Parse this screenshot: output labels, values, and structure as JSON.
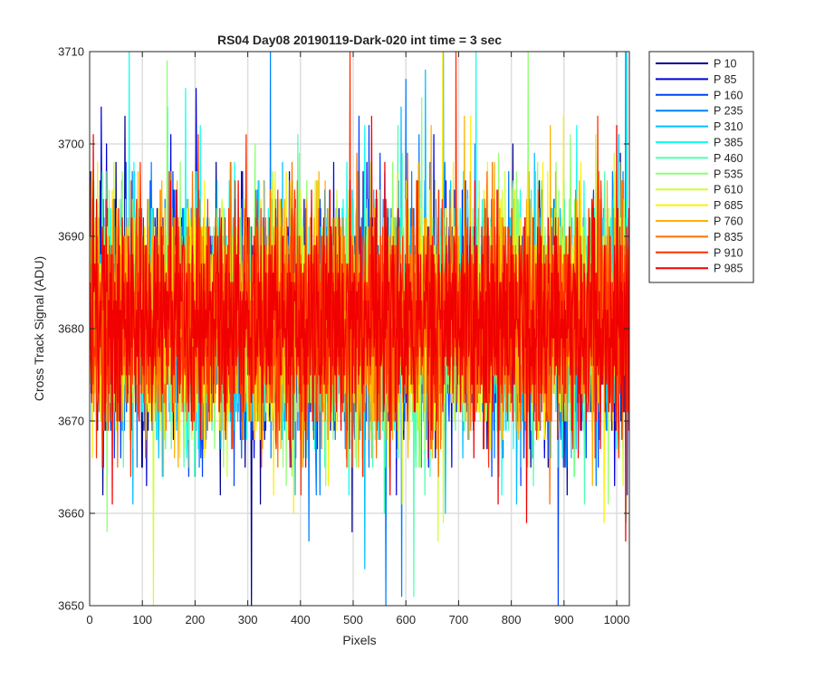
{
  "chart_data": {
    "type": "line",
    "title": "RS04 Day08 20190119-Dark-020 int time = 3 sec",
    "xlabel": "Pixels",
    "ylabel": "Cross Track Signal (ADU)",
    "xlim": [
      0,
      1024
    ],
    "ylim": [
      3650,
      3710
    ],
    "x_ticks": [
      0,
      100,
      200,
      300,
      400,
      500,
      600,
      700,
      800,
      900,
      1000
    ],
    "y_ticks": [
      3650,
      3660,
      3670,
      3680,
      3690,
      3700,
      3710
    ],
    "grid": true,
    "legend_position": "outside-top-right",
    "pixel_count": 1024,
    "series_note_mean": 3681,
    "series_note_noise_sd": 6,
    "series": [
      {
        "name": "P 10",
        "color": "#00008F"
      },
      {
        "name": "P 85",
        "color": "#0000E0"
      },
      {
        "name": "P 160",
        "color": "#0040FF"
      },
      {
        "name": "P 235",
        "color": "#0080FF"
      },
      {
        "name": "P 310",
        "color": "#00BFFF"
      },
      {
        "name": "P 385",
        "color": "#10FFEF"
      },
      {
        "name": "P 460",
        "color": "#50FFAF"
      },
      {
        "name": "P 535",
        "color": "#8FFF70"
      },
      {
        "name": "P 610",
        "color": "#CFFF30"
      },
      {
        "name": "P 685",
        "color": "#FFEF00"
      },
      {
        "name": "P 760",
        "color": "#FFB000"
      },
      {
        "name": "P 835",
        "color": "#FF7000"
      },
      {
        "name": "P 910",
        "color": "#FF3000"
      },
      {
        "name": "P 985",
        "color": "#F00000"
      }
    ]
  }
}
